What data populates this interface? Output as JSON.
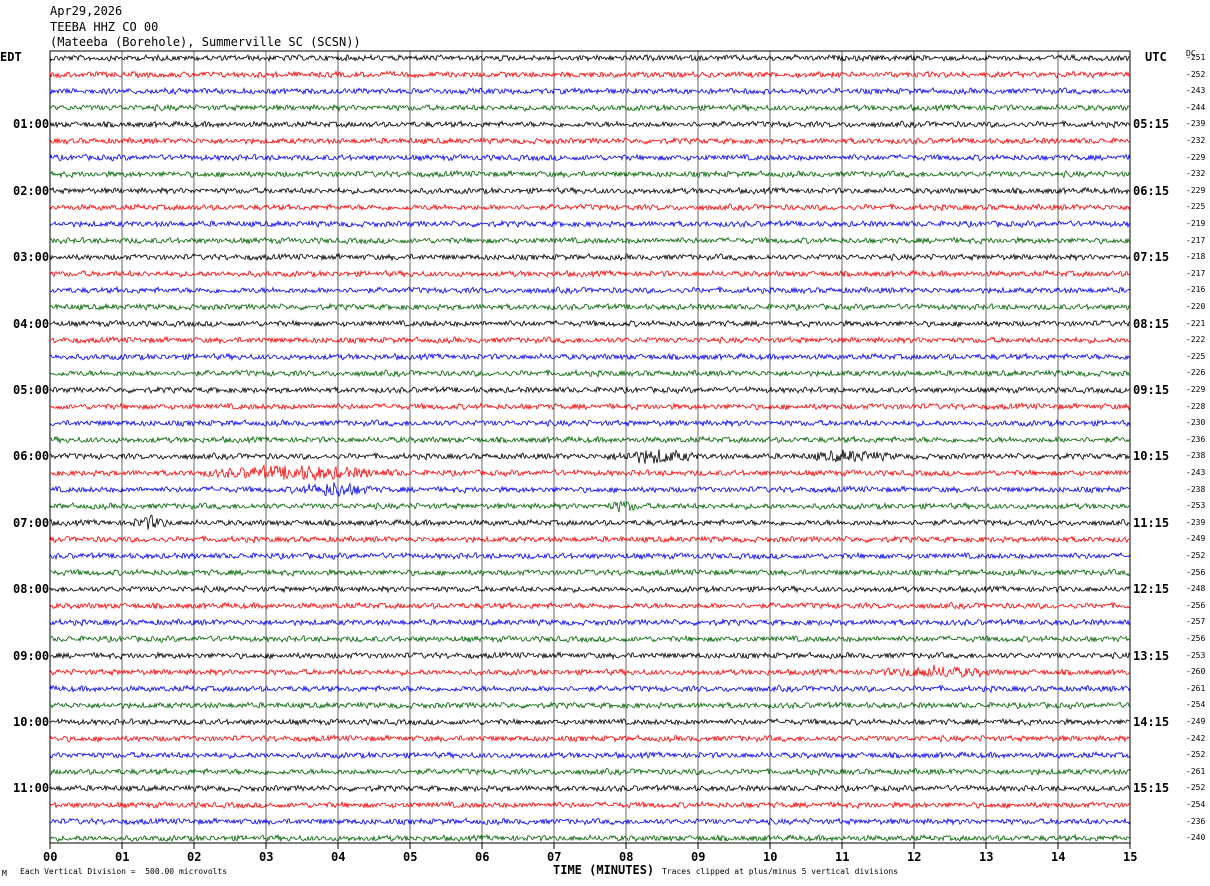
{
  "header": {
    "date": "Apr29,2026",
    "station": "TEEBA HHZ CO 00",
    "location": "(Mateeba (Borehole), Summerville SC (SCSN))"
  },
  "left_axis_title": "EDT",
  "right_axis_title": "UTC",
  "dc_header": "DC",
  "footer": {
    "scale": "Each Vertical Division =  500.00 microvolts",
    "xlabel": "TIME (MINUTES)",
    "clip_note": "Traces clipped at plus/minus 5 vertical divisions",
    "corner_mark": "M"
  },
  "colors": [
    "#000000",
    "#ff0000",
    "#0000ff",
    "#006400"
  ],
  "chart_data": {
    "type": "line",
    "title": "TEEBA HHZ CO 00",
    "xlabel": "TIME (MINUTES)",
    "x_ticks": [
      "00",
      "01",
      "02",
      "03",
      "04",
      "05",
      "06",
      "07",
      "08",
      "09",
      "10",
      "11",
      "12",
      "13",
      "14",
      "15"
    ],
    "xlim": [
      0,
      15
    ],
    "trace_count": 48,
    "left_time_labels": [
      {
        "row": 4,
        "label": "01:00"
      },
      {
        "row": 8,
        "label": "02:00"
      },
      {
        "row": 12,
        "label": "03:00"
      },
      {
        "row": 16,
        "label": "04:00"
      },
      {
        "row": 20,
        "label": "05:00"
      },
      {
        "row": 24,
        "label": "06:00"
      },
      {
        "row": 28,
        "label": "07:00"
      },
      {
        "row": 32,
        "label": "08:00"
      },
      {
        "row": 36,
        "label": "09:00"
      },
      {
        "row": 40,
        "label": "10:00"
      },
      {
        "row": 44,
        "label": "11:00"
      }
    ],
    "right_time_labels": [
      {
        "row": 4,
        "label": "05:15"
      },
      {
        "row": 8,
        "label": "06:15"
      },
      {
        "row": 12,
        "label": "07:15"
      },
      {
        "row": 16,
        "label": "08:15"
      },
      {
        "row": 20,
        "label": "09:15"
      },
      {
        "row": 24,
        "label": "10:15"
      },
      {
        "row": 28,
        "label": "11:15"
      },
      {
        "row": 32,
        "label": "12:15"
      },
      {
        "row": 36,
        "label": "13:15"
      },
      {
        "row": 40,
        "label": "14:15"
      },
      {
        "row": 44,
        "label": "15:15"
      }
    ],
    "dc_offsets": [
      "-251",
      "-252",
      "-243",
      "-244",
      "-239",
      "-232",
      "-229",
      "-232",
      "-229",
      "-225",
      "-219",
      "-217",
      "-218",
      "-217",
      "-216",
      "-220",
      "-221",
      "-222",
      "-225",
      "-226",
      "-229",
      "-228",
      "-230",
      "-236",
      "-238",
      "-243",
      "-238",
      "-253",
      "-239",
      "-249",
      "-252",
      "-256",
      "-248",
      "-256",
      "-257",
      "-256",
      "-253",
      "-260",
      "-261",
      "-254",
      "-249",
      "-242",
      "-252",
      "-261",
      "-252",
      "-254",
      "-236",
      "-240"
    ],
    "events": [
      {
        "row": 25,
        "x_start": 1.9,
        "x_end": 5.0,
        "amp": 2.0
      },
      {
        "row": 26,
        "x_start": 3.3,
        "x_end": 4.6,
        "amp": 2.0
      },
      {
        "row": 24,
        "x_start": 7.7,
        "x_end": 9.1,
        "amp": 2.0
      },
      {
        "row": 24,
        "x_start": 10.4,
        "x_end": 11.8,
        "amp": 1.5
      },
      {
        "row": 28,
        "x_start": 1.1,
        "x_end": 1.7,
        "amp": 2.0
      },
      {
        "row": 37,
        "x_start": 11.4,
        "x_end": 13.2,
        "amp": 1.6
      },
      {
        "row": 27,
        "x_start": 7.7,
        "x_end": 8.2,
        "amp": 1.5
      }
    ]
  }
}
